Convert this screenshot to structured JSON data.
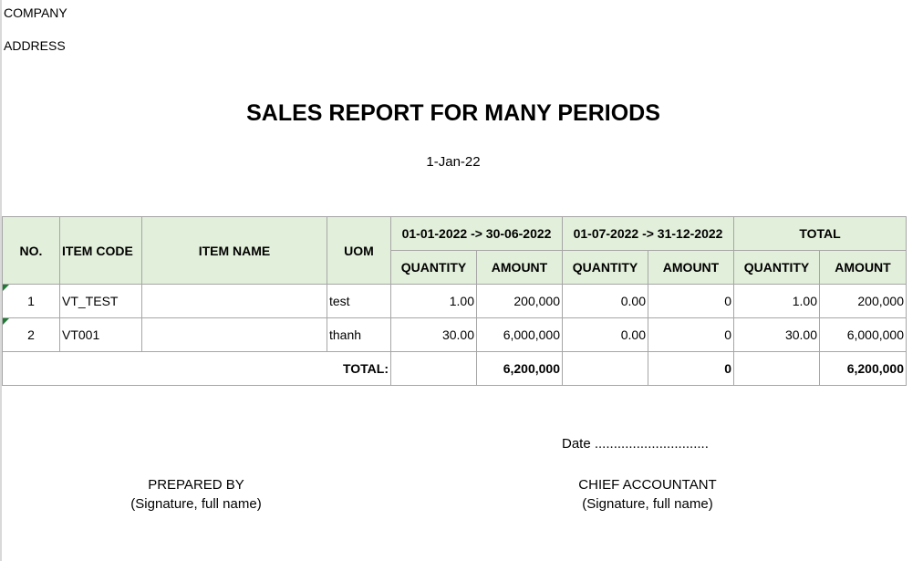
{
  "header": {
    "company": "COMPANY",
    "address": "ADDRESS",
    "title": "SALES REPORT FOR MANY PERIODS",
    "date": "1-Jan-22"
  },
  "table": {
    "headers": {
      "no": "NO.",
      "item_code": "ITEM CODE",
      "item_name": "ITEM NAME",
      "uom": "UOM",
      "period1": "01-01-2022 -> 30-06-2022",
      "period2": "01-07-2022 -> 31-12-2022",
      "total": "TOTAL",
      "quantity": "QUANTITY",
      "amount": "AMOUNT"
    },
    "rows": [
      {
        "no": "1",
        "item_code": "VT_TEST",
        "item_name": "",
        "uom": "test",
        "p1_qty": "1.00",
        "p1_amt": "200,000",
        "p2_qty": "0.00",
        "p2_amt": "0",
        "t_qty": "1.00",
        "t_amt": "200,000"
      },
      {
        "no": "2",
        "item_code": "VT001",
        "item_name": "",
        "uom": "thanh",
        "p1_qty": "30.00",
        "p1_amt": "6,000,000",
        "p2_qty": "0.00",
        "p2_amt": "0",
        "t_qty": "30.00",
        "t_amt": "6,000,000"
      }
    ],
    "total": {
      "label": "TOTAL:",
      "p1_amt": "6,200,000",
      "p2_amt": "0",
      "t_amt": "6,200,000"
    },
    "marker_color": "#1e7b34",
    "header_bg": "#e2efda"
  },
  "footer": {
    "date_line": "Date ..............................",
    "prepared_by": "PREPARED BY",
    "prepared_sig": "(Signature, full name)",
    "chief": "CHIEF ACCOUNTANT",
    "chief_sig": "(Signature, full name)"
  }
}
